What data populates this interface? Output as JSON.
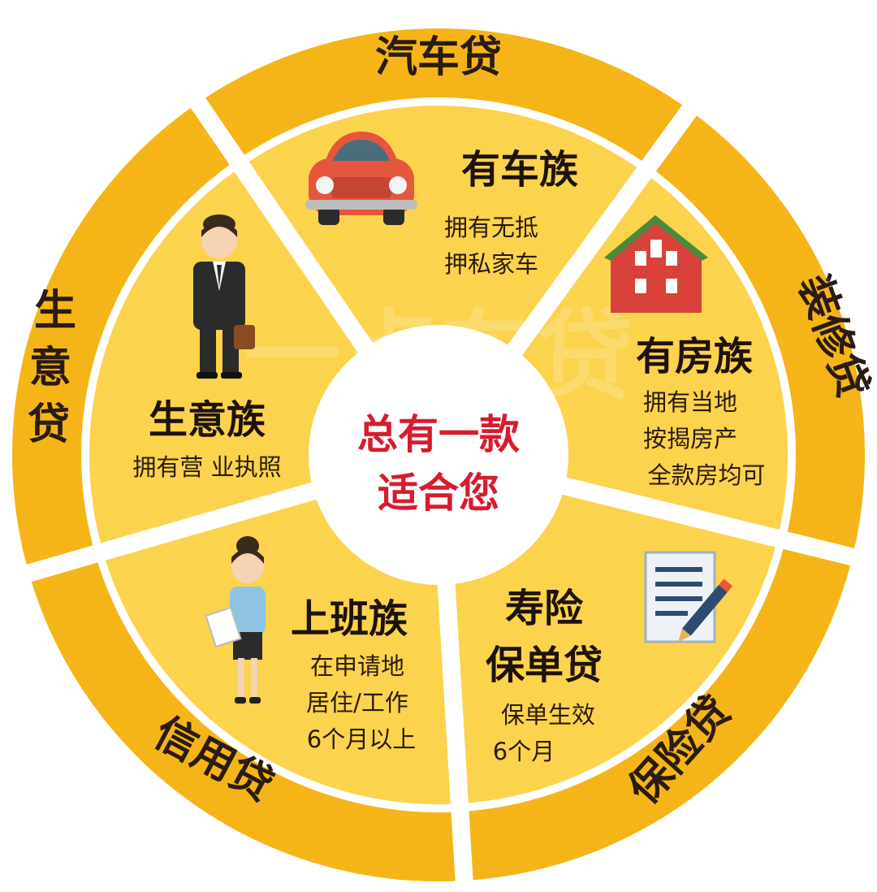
{
  "colors": {
    "outer_ring": "#f5b519",
    "inner_sector": "#fbd34d",
    "divider": "#ffffff",
    "center_fill": "#ffffff",
    "center_text": "#d71c2c",
    "text_dark": "#2a1c10"
  },
  "center": {
    "line1": "总有一款",
    "line2": "适合您"
  },
  "watermark": {
    "text": "一点车贷"
  },
  "outer_ring": {
    "car_loan": "汽车贷",
    "renovation_loan": "装修贷",
    "insurance_loan": "保险贷",
    "credit_loan": "信用贷",
    "business_loan": "生意贷"
  },
  "groups": {
    "car_owners": {
      "title": "有车族",
      "desc": [
        "拥有无抵",
        "押私家车"
      ],
      "icon": "car-icon"
    },
    "home_owners": {
      "title": "有房族",
      "desc": [
        "拥有当地",
        "按揭房产",
        "全款房均可"
      ],
      "icon": "house-icon"
    },
    "insurance": {
      "title_lines": [
        "寿险",
        "保单贷"
      ],
      "desc": [
        "保单生效",
        "6个月"
      ],
      "icon": "document-pen-icon"
    },
    "office_workers": {
      "title": "上班族",
      "desc": [
        "在申请地",
        "居住/工作",
        "6个月以上"
      ],
      "icon": "office-woman-icon"
    },
    "business_owners": {
      "title": "生意族",
      "desc": [
        "拥有营 业执照"
      ],
      "icon": "businessman-icon"
    }
  }
}
